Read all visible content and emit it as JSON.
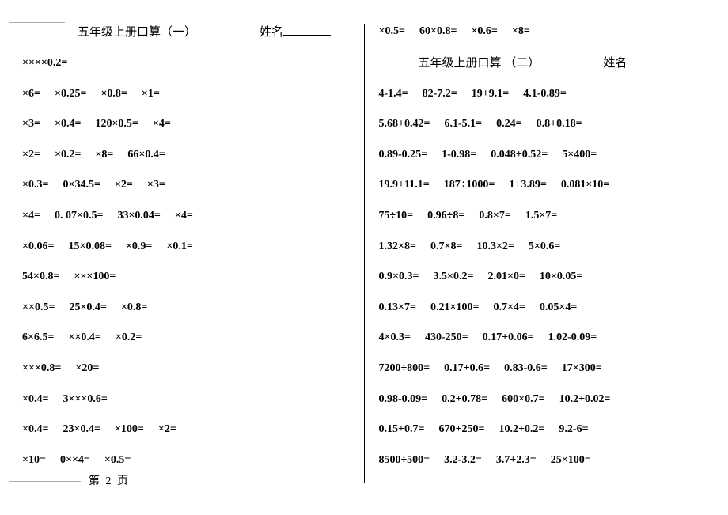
{
  "left": {
    "title": "五年级上册口算（一）",
    "nameLabel": "姓名",
    "rows": [
      [
        "××××0.2="
      ],
      [
        "×6=",
        "×0.25=",
        "×0.8=",
        "×1="
      ],
      [
        "×3=",
        "×0.4=",
        "120×0.5=",
        "×4="
      ],
      [
        "×2=",
        "×0.2=",
        "×8=",
        "66×0.4="
      ],
      [
        "×0.3=",
        "0×34.5=",
        "×2=",
        "×3="
      ],
      [
        "×4=",
        "0. 07×0.5=",
        "33×0.04=",
        "×4="
      ],
      [
        "×0.06=",
        "15×0.08=",
        "×0.9=",
        "×0.1="
      ],
      [
        "54×0.8=",
        "×××100="
      ],
      [
        "××0.5=",
        "25×0.4=",
        "×0.8="
      ],
      [
        "6×6.5=",
        "××0.4=",
        "×0.2="
      ],
      [
        "×××0.8=",
        "×20="
      ],
      [
        "×0.4=",
        "3×××0.6="
      ],
      [
        "×0.4=",
        "23×0.4=",
        "×100=",
        "×2="
      ],
      [
        "×10=",
        "0××4=",
        "×0.5="
      ]
    ]
  },
  "right": {
    "topRow": [
      "×0.5=",
      "60×0.8=",
      "×0.6=",
      "×8="
    ],
    "title": "五年级上册口算 （二）",
    "nameLabel": "姓名",
    "rows": [
      [
        "4-1.4=",
        "82-7.2=",
        "19+9.1=",
        "4.1-0.89="
      ],
      [
        "5.68+0.42=",
        "6.1-5.1=",
        "0.24=",
        "0.8+0.18="
      ],
      [
        "0.89-0.25=",
        "1-0.98=",
        "0.048+0.52=",
        "5×400="
      ],
      [
        "19.9+11.1=",
        "187÷1000=",
        "1+3.89=",
        "0.081×10="
      ],
      [
        "75÷10=",
        "0.96÷8=",
        "0.8×7=",
        "1.5×7="
      ],
      [
        "1.32×8=",
        "0.7×8=",
        "10.3×2=",
        "5×0.6="
      ],
      [
        "0.9×0.3=",
        "3.5×0.2=",
        "2.01×0=",
        "10×0.05="
      ],
      [
        "0.13×7=",
        "0.21×100=",
        "0.7×4=",
        "0.05×4="
      ],
      [
        "4×0.3=",
        "430-250=",
        "0.17+0.06=",
        "1.02-0.09="
      ],
      [
        "7200÷800=",
        "0.17+0.6=",
        "0.83-0.6=",
        "17×300="
      ],
      [
        "0.98-0.09=",
        "0.2+0.78=",
        "600×0.7=",
        "10.2+0.02="
      ],
      [
        "0.15+0.7=",
        "670+250=",
        "10.2+0.2=",
        "9.2-6="
      ],
      [
        "8500÷500=",
        "3.2-3.2=",
        "3.7+2.3=",
        "25×100="
      ]
    ]
  },
  "pageNum": "第 2 页"
}
